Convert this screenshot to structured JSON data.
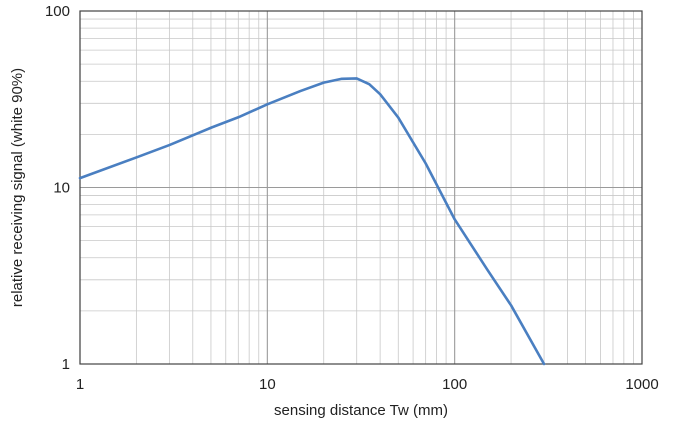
{
  "chart_data": {
    "type": "line",
    "xscale": "log",
    "yscale": "log",
    "xlim": [
      1,
      1000
    ],
    "ylim": [
      1,
      100
    ],
    "xlabel": "sensing distance Tw (mm)",
    "ylabel": "relative receiving signal (white 90%)",
    "x_ticks": [
      {
        "value": 1,
        "label": "1"
      },
      {
        "value": 10,
        "label": "10"
      },
      {
        "value": 100,
        "label": "100"
      },
      {
        "value": 1000,
        "label": "1000"
      }
    ],
    "y_ticks": [
      {
        "value": 1,
        "label": "1"
      },
      {
        "value": 10,
        "label": "10"
      },
      {
        "value": 100,
        "label": "100"
      }
    ],
    "grid": true,
    "line_color": "#4a7fc1",
    "grid_color": "#c8c8c8",
    "series": [
      {
        "x": [
          1,
          2,
          3,
          5,
          7,
          10,
          15,
          20,
          25,
          30,
          35,
          40,
          50,
          70,
          100,
          150,
          200,
          300
        ],
        "y": [
          11.3,
          14.8,
          17.4,
          21.8,
          25.0,
          29.6,
          35.2,
          39.3,
          41.3,
          41.5,
          38.5,
          33.8,
          24.9,
          13.7,
          6.6,
          3.4,
          2.15,
          1.0
        ]
      }
    ]
  }
}
